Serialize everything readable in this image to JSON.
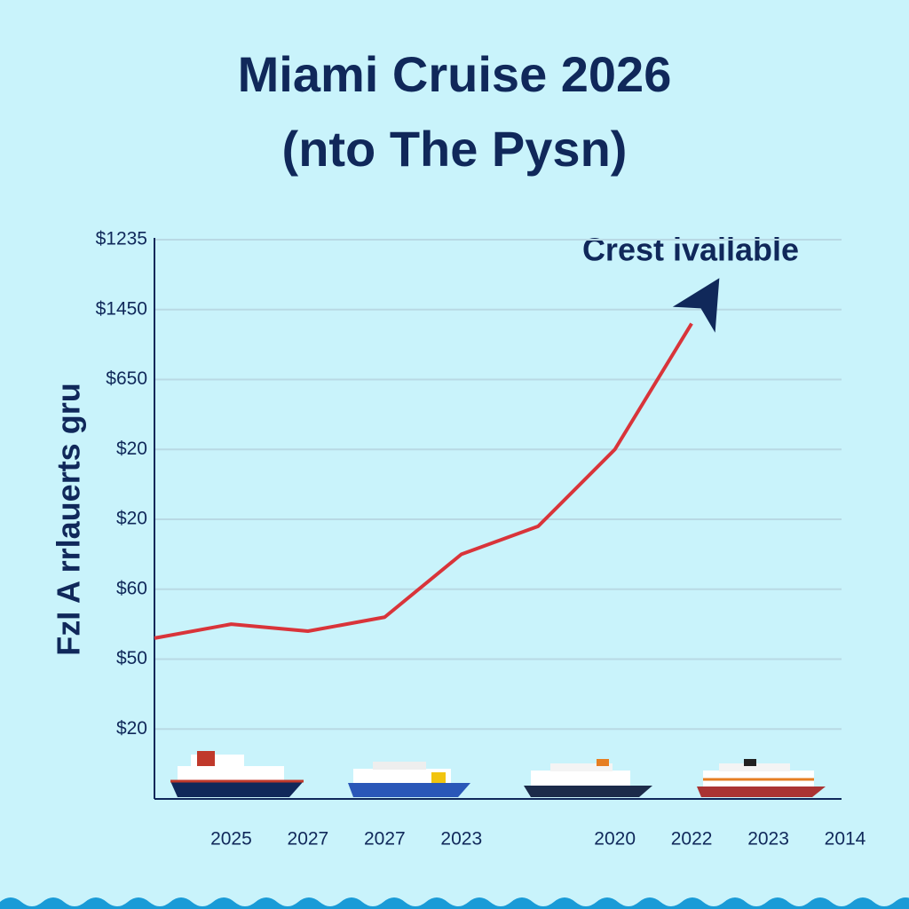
{
  "chart_data": {
    "type": "line",
    "title": "Miami Cruise 2026",
    "subtitle": "(nto The Pysn)",
    "y_label": "FzI A rrlauerts gru",
    "annotation": "Crest ivailable",
    "categories": [
      null,
      "2025",
      "2027",
      "2027",
      "2023",
      null,
      "2020",
      "2022",
      "2023",
      "2014"
    ],
    "series": [
      {
        "color": "#d9343a",
        "values": [
          2.3,
          2.5,
          2.4,
          2.6,
          3.5,
          3.9,
          5.0,
          6.8,
          null,
          null
        ]
      }
    ],
    "ylim": [
      0,
      8
    ],
    "yticks": [
      {
        "value": 1,
        "label": "$20"
      },
      {
        "value": 2,
        "label": "$50"
      },
      {
        "value": 3,
        "label": "$60"
      },
      {
        "value": 4,
        "label": "$20"
      },
      {
        "value": 5,
        "label": "$20"
      },
      {
        "value": 6,
        "label": "$650"
      },
      {
        "value": 7,
        "label": "$1450"
      },
      {
        "value": 8,
        "label": "$1235"
      }
    ],
    "grid": true
  }
}
